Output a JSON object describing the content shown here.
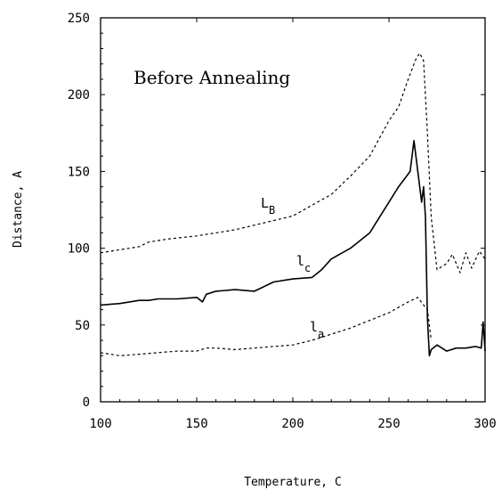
{
  "chart_data": {
    "type": "line",
    "title": "",
    "annotation": "Before Annealing",
    "xlabel": "Temperature, C",
    "ylabel": "Distance, A",
    "xlim": [
      100,
      300
    ],
    "ylim": [
      0,
      250
    ],
    "x_ticks": [
      100,
      150,
      200,
      250,
      300
    ],
    "y_ticks": [
      0,
      50,
      100,
      150,
      200,
      250
    ],
    "grid": false,
    "series": [
      {
        "name": "L",
        "subscript": "B",
        "style": "dashed",
        "x": [
          100,
          110,
          120,
          125,
          135,
          150,
          160,
          170,
          180,
          190,
          200,
          210,
          220,
          230,
          240,
          250,
          255,
          260,
          264,
          266,
          268,
          270,
          272,
          275,
          280,
          283,
          287,
          290,
          293,
          297,
          300
        ],
        "y": [
          97,
          99,
          101,
          104,
          106,
          108,
          110,
          112,
          115,
          118,
          121,
          128,
          135,
          147,
          160,
          183,
          192,
          210,
          223,
          227,
          222,
          175,
          120,
          86,
          90,
          96,
          84,
          97,
          87,
          98,
          93
        ]
      },
      {
        "name": "l",
        "subscript": "c",
        "style": "solid",
        "x": [
          100,
          110,
          120,
          125,
          130,
          140,
          150,
          153,
          155,
          160,
          170,
          180,
          190,
          200,
          210,
          215,
          220,
          230,
          240,
          245,
          250,
          255,
          258,
          261,
          263,
          265,
          267,
          268,
          269,
          270,
          271,
          272,
          275,
          280,
          285,
          290,
          295,
          298,
          299,
          300
        ],
        "y": [
          63,
          64,
          66,
          66,
          67,
          67,
          68,
          65,
          70,
          72,
          73,
          72,
          78,
          80,
          81,
          86,
          93,
          100,
          110,
          120,
          130,
          140,
          145,
          150,
          170,
          150,
          130,
          140,
          120,
          55,
          30,
          34,
          37,
          33,
          35,
          35,
          36,
          35,
          52,
          33
        ]
      },
      {
        "name": "l",
        "subscript": "a",
        "style": "dashed",
        "x": [
          100,
          110,
          120,
          130,
          140,
          150,
          155,
          160,
          170,
          180,
          190,
          200,
          210,
          220,
          230,
          240,
          250,
          260,
          265,
          268,
          270,
          272
        ],
        "y": [
          32,
          30,
          31,
          32,
          33,
          33,
          35,
          35,
          34,
          35,
          36,
          37,
          40,
          44,
          48,
          53,
          58,
          65,
          68,
          63,
          60,
          40
        ]
      }
    ]
  }
}
